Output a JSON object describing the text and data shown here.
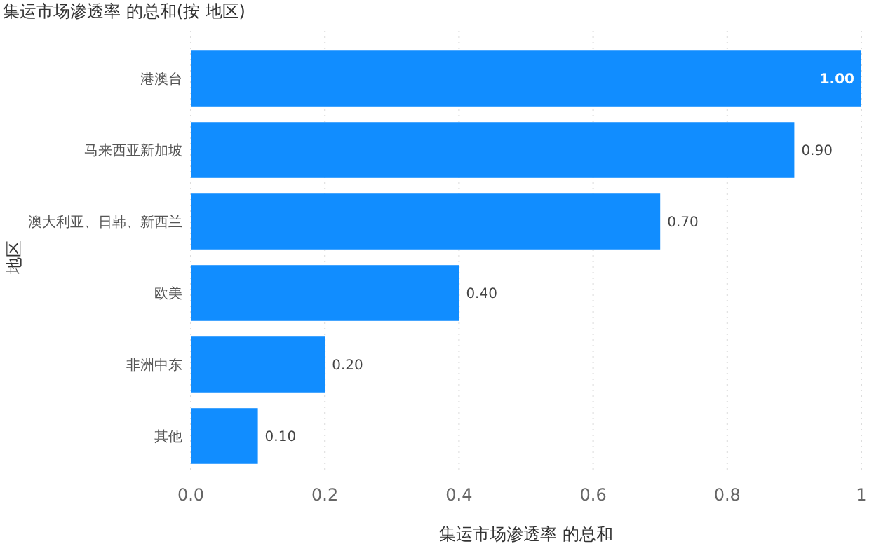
{
  "chart_data": {
    "type": "bar",
    "orientation": "horizontal",
    "title": "集运市场渗透率 的总和(按 地区)",
    "xlabel": "集运市场渗透率 的总和",
    "ylabel": "地区",
    "categories": [
      "港澳台",
      "马来西亚新加坡",
      "澳大利亚、日韩、新西兰",
      "欧美",
      "非洲中东",
      "其他"
    ],
    "values": [
      1.0,
      0.9,
      0.7,
      0.4,
      0.2,
      0.1
    ],
    "value_labels": [
      "1.00",
      "0.90",
      "0.70",
      "0.40",
      "0.20",
      "0.10"
    ],
    "color": "#118dff",
    "xlim": [
      0,
      1
    ],
    "xticks": [
      {
        "value": 0,
        "label": "0.0"
      },
      0.2,
      0.4,
      0.6,
      0.8,
      {
        "value": 1,
        "label": "1"
      }
    ],
    "grid": "x"
  }
}
